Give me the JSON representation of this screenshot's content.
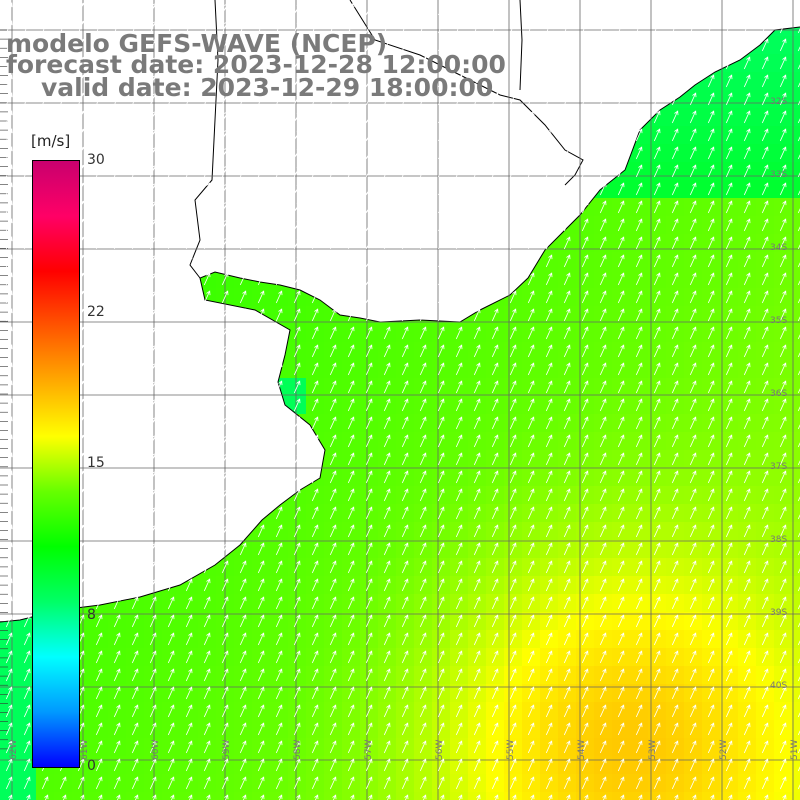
{
  "title": {
    "model": "modelo GEFS-WAVE (NCEP)",
    "forecast": "forecast date: 2023-12-28 12:00:00",
    "valid": "valid date: 2023-12-29 18:00:00"
  },
  "colorbar": {
    "unit": "[m/s]",
    "min": 0,
    "max": 30,
    "ticks": [
      {
        "value": 30,
        "label": "30"
      },
      {
        "value": 22.5,
        "label": "22"
      },
      {
        "value": 15,
        "label": "15"
      },
      {
        "value": 7.5,
        "label": "8"
      },
      {
        "value": 0,
        "label": "0"
      }
    ],
    "colors": [
      "#0000ff",
      "#0099ff",
      "#00ffff",
      "#00ff66",
      "#00ff00",
      "#66ff00",
      "#ffff00",
      "#ffaa00",
      "#ff5500",
      "#ff0000",
      "#ff0066",
      "#c8006e"
    ]
  },
  "map": {
    "lat_labels": [
      "32S",
      "33S",
      "34S",
      "35S",
      "36S",
      "37S",
      "38S",
      "39S",
      "40S"
    ],
    "lon_labels": [
      "62W",
      "61W",
      "60W",
      "59W",
      "58W",
      "57W",
      "56W",
      "55W",
      "54W",
      "53W",
      "52W",
      "51W"
    ],
    "land_color": "#ffffff",
    "grid_color": "#666666",
    "coast_color": "#000000",
    "arrow_color": "#ffffff",
    "wind_direction": "from south-west"
  }
}
